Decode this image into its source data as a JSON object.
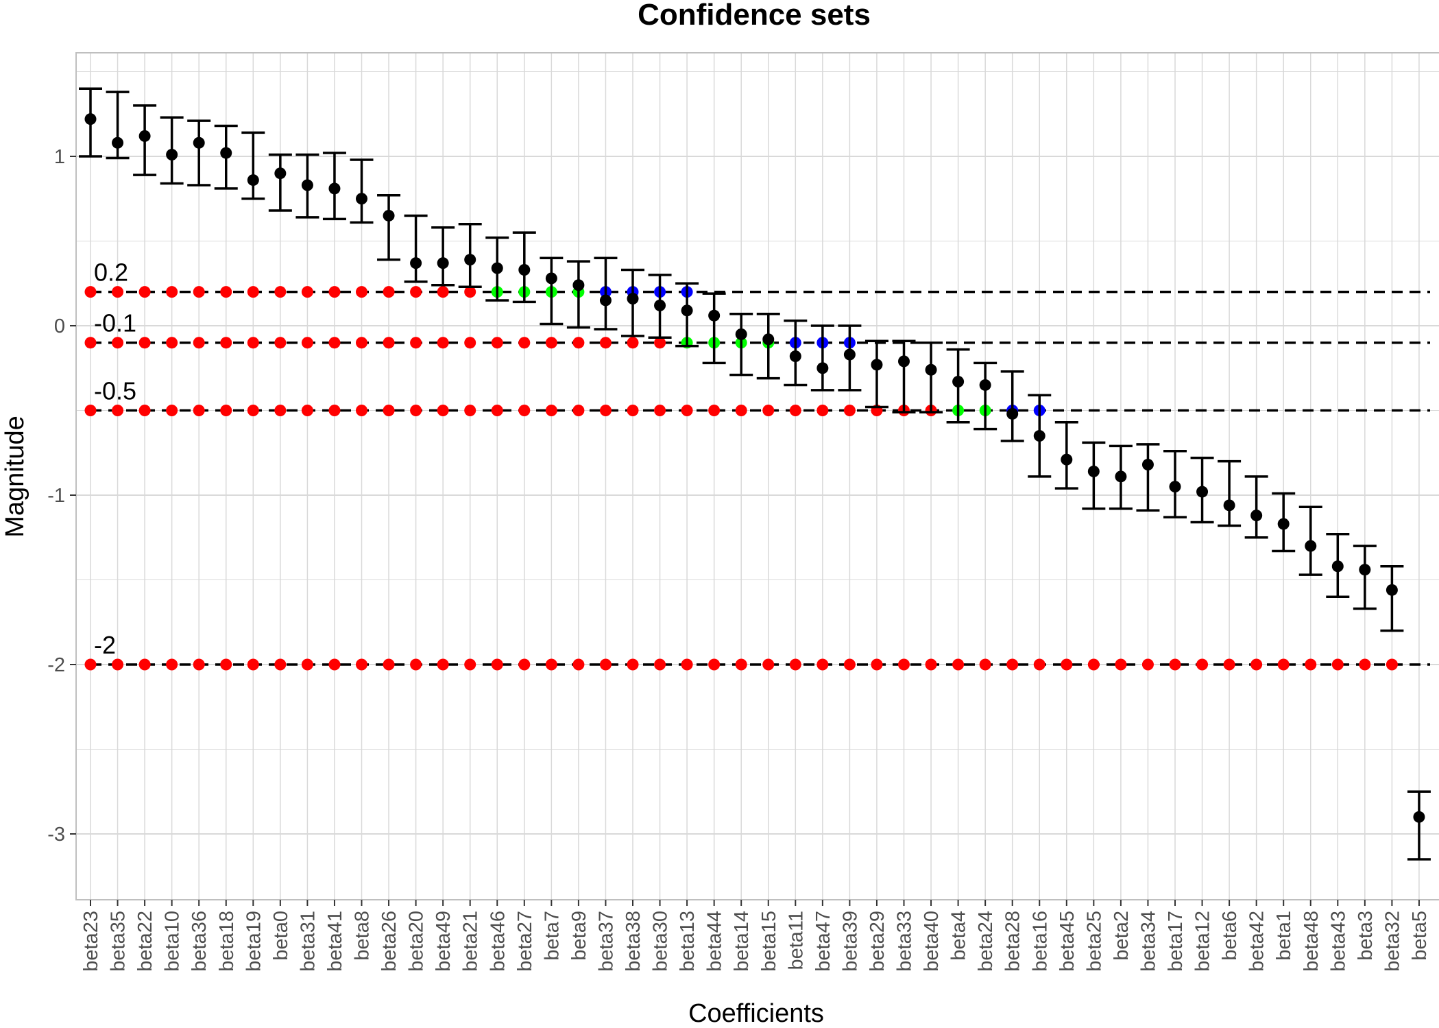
{
  "chart_data": {
    "type": "scatter",
    "title": "Confidence sets",
    "xlabel": "Coefficients",
    "ylabel": "Magnitude",
    "ylim": [
      -3.4,
      1.6
    ],
    "yticks": [
      1,
      0,
      -1,
      -2,
      -3
    ],
    "ytick_labels": [
      "1",
      "0",
      "-1",
      "-2",
      "-3"
    ],
    "grid": true,
    "legend": "none",
    "categories": [
      "beta23",
      "beta35",
      "beta22",
      "beta10",
      "beta36",
      "beta18",
      "beta19",
      "beta0",
      "beta31",
      "beta41",
      "beta8",
      "beta26",
      "beta20",
      "beta49",
      "beta21",
      "beta46",
      "beta27",
      "beta7",
      "beta9",
      "beta37",
      "beta38",
      "beta30",
      "beta13",
      "beta44",
      "beta14",
      "beta15",
      "beta11",
      "beta47",
      "beta39",
      "beta29",
      "beta33",
      "beta40",
      "beta4",
      "beta24",
      "beta28",
      "beta16",
      "beta45",
      "beta25",
      "beta2",
      "beta34",
      "beta17",
      "beta12",
      "beta6",
      "beta42",
      "beta1",
      "beta48",
      "beta43",
      "beta3",
      "beta32",
      "beta5"
    ],
    "series": [
      {
        "estimates": [
          1.22,
          1.08,
          1.12,
          1.01,
          1.08,
          1.02,
          0.86,
          0.9,
          0.83,
          0.81,
          0.75,
          0.65,
          0.37,
          0.37,
          0.39,
          0.34,
          0.33,
          0.28,
          0.24,
          0.15,
          0.16,
          0.12,
          0.09,
          0.06,
          -0.05,
          -0.08,
          -0.18,
          -0.25,
          -0.17,
          -0.23,
          -0.21,
          -0.26,
          -0.33,
          -0.35,
          -0.52,
          -0.65,
          -0.79,
          -0.86,
          -0.89,
          -0.82,
          -0.95,
          -0.98,
          -1.06,
          -1.12,
          -1.17,
          -1.3,
          -1.42,
          -1.44,
          -1.56,
          -2.9
        ],
        "lower": [
          1.0,
          0.99,
          0.89,
          0.84,
          0.83,
          0.81,
          0.75,
          0.68,
          0.64,
          0.63,
          0.61,
          0.39,
          0.26,
          0.24,
          0.23,
          0.15,
          0.14,
          0.01,
          -0.01,
          -0.02,
          -0.06,
          -0.07,
          -0.12,
          -0.22,
          -0.29,
          -0.31,
          -0.35,
          -0.38,
          -0.38,
          -0.48,
          -0.51,
          -0.51,
          -0.57,
          -0.61,
          -0.68,
          -0.89,
          -0.96,
          -1.08,
          -1.08,
          -1.09,
          -1.13,
          -1.16,
          -1.18,
          -1.25,
          -1.33,
          -1.47,
          -1.6,
          -1.67,
          -1.8,
          -3.15
        ],
        "upper": [
          1.4,
          1.38,
          1.3,
          1.23,
          1.21,
          1.18,
          1.14,
          1.01,
          1.01,
          1.02,
          0.98,
          0.77,
          0.65,
          0.58,
          0.6,
          0.52,
          0.55,
          0.4,
          0.38,
          0.4,
          0.33,
          0.3,
          0.25,
          0.19,
          0.07,
          0.07,
          0.03,
          0.0,
          0.0,
          -0.09,
          -0.09,
          -0.1,
          -0.14,
          -0.22,
          -0.27,
          -0.41,
          -0.57,
          -0.69,
          -0.71,
          -0.7,
          -0.74,
          -0.78,
          -0.8,
          -0.89,
          -0.99,
          -1.07,
          -1.23,
          -1.3,
          -1.42,
          -2.75
        ]
      }
    ],
    "reference_lines": [
      {
        "value": 0.2,
        "label": "0.2",
        "colors": [
          "red",
          "red",
          "red",
          "red",
          "red",
          "red",
          "red",
          "red",
          "red",
          "red",
          "red",
          "red",
          "red",
          "red",
          "red",
          "green",
          "green",
          "green",
          "green",
          "blue",
          "blue",
          "blue",
          "blue"
        ]
      },
      {
        "value": -0.1,
        "label": "-0.1",
        "colors": [
          "red",
          "red",
          "red",
          "red",
          "red",
          "red",
          "red",
          "red",
          "red",
          "red",
          "red",
          "red",
          "red",
          "red",
          "red",
          "red",
          "red",
          "red",
          "red",
          "red",
          "red",
          "red",
          "green",
          "green",
          "green",
          "green",
          "blue",
          "blue",
          "blue"
        ]
      },
      {
        "value": -0.5,
        "label": "-0.5",
        "colors": [
          "red",
          "red",
          "red",
          "red",
          "red",
          "red",
          "red",
          "red",
          "red",
          "red",
          "red",
          "red",
          "red",
          "red",
          "red",
          "red",
          "red",
          "red",
          "red",
          "red",
          "red",
          "red",
          "red",
          "red",
          "red",
          "red",
          "red",
          "red",
          "red",
          "red",
          "red",
          "red",
          "green",
          "green",
          "blue",
          "blue"
        ]
      },
      {
        "value": -2,
        "label": "-2",
        "colors": [
          "red",
          "red",
          "red",
          "red",
          "red",
          "red",
          "red",
          "red",
          "red",
          "red",
          "red",
          "red",
          "red",
          "red",
          "red",
          "red",
          "red",
          "red",
          "red",
          "red",
          "red",
          "red",
          "red",
          "red",
          "red",
          "red",
          "red",
          "red",
          "red",
          "red",
          "red",
          "red",
          "red",
          "red",
          "red",
          "red",
          "red",
          "red",
          "red",
          "red",
          "red",
          "red",
          "red",
          "red",
          "red",
          "red",
          "red",
          "red",
          "red"
        ]
      }
    ],
    "colors": {
      "red": "#ff0000",
      "green": "#00ff00",
      "blue": "#0000ff",
      "estimate": "#000000",
      "grid": "#d9d9d9",
      "panel_border": "#bfbfbf"
    }
  }
}
